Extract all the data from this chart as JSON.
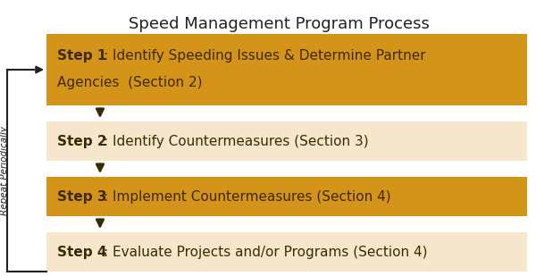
{
  "title": "Speed Management Program Process",
  "title_fontsize": 13,
  "background_color": "#ffffff",
  "steps": [
    {
      "step_label": "Step 1",
      "colon_text": ": Identify Speeding Issues & Determine Partner",
      "second_line": "Agencies  (Section 2)",
      "text": ": Identify Speeding Issues & Determine Partner\nAgencies  (Section 2)",
      "bg_color": "#D4941A",
      "text_color": "#3d2b00",
      "two_line": true
    },
    {
      "step_label": "Step 2",
      "colon_text": ": Identify Countermeasures (Section 3)",
      "second_line": "",
      "text": ": Identify Countermeasures (Section 3)",
      "bg_color": "#F5E6CC",
      "text_color": "#3d2b00",
      "two_line": false
    },
    {
      "step_label": "Step 3",
      "colon_text": ": Implement Countermeasures (Section 4)",
      "second_line": "",
      "text": ": Implement Countermeasures (Section 4)",
      "bg_color": "#D4941A",
      "text_color": "#3d2b00",
      "two_line": false
    },
    {
      "step_label": "Step 4",
      "colon_text": ": Evaluate Projects and/or Programs (Section 4)",
      "second_line": "",
      "text": ": Evaluate Projects and/or Programs (Section 4)",
      "bg_color": "#F5E6CC",
      "text_color": "#3d2b00",
      "two_line": false
    }
  ],
  "arrow_color": "#3d2b00",
  "repeat_text": "Repeat Periodically",
  "repeat_text_color": "#222222"
}
